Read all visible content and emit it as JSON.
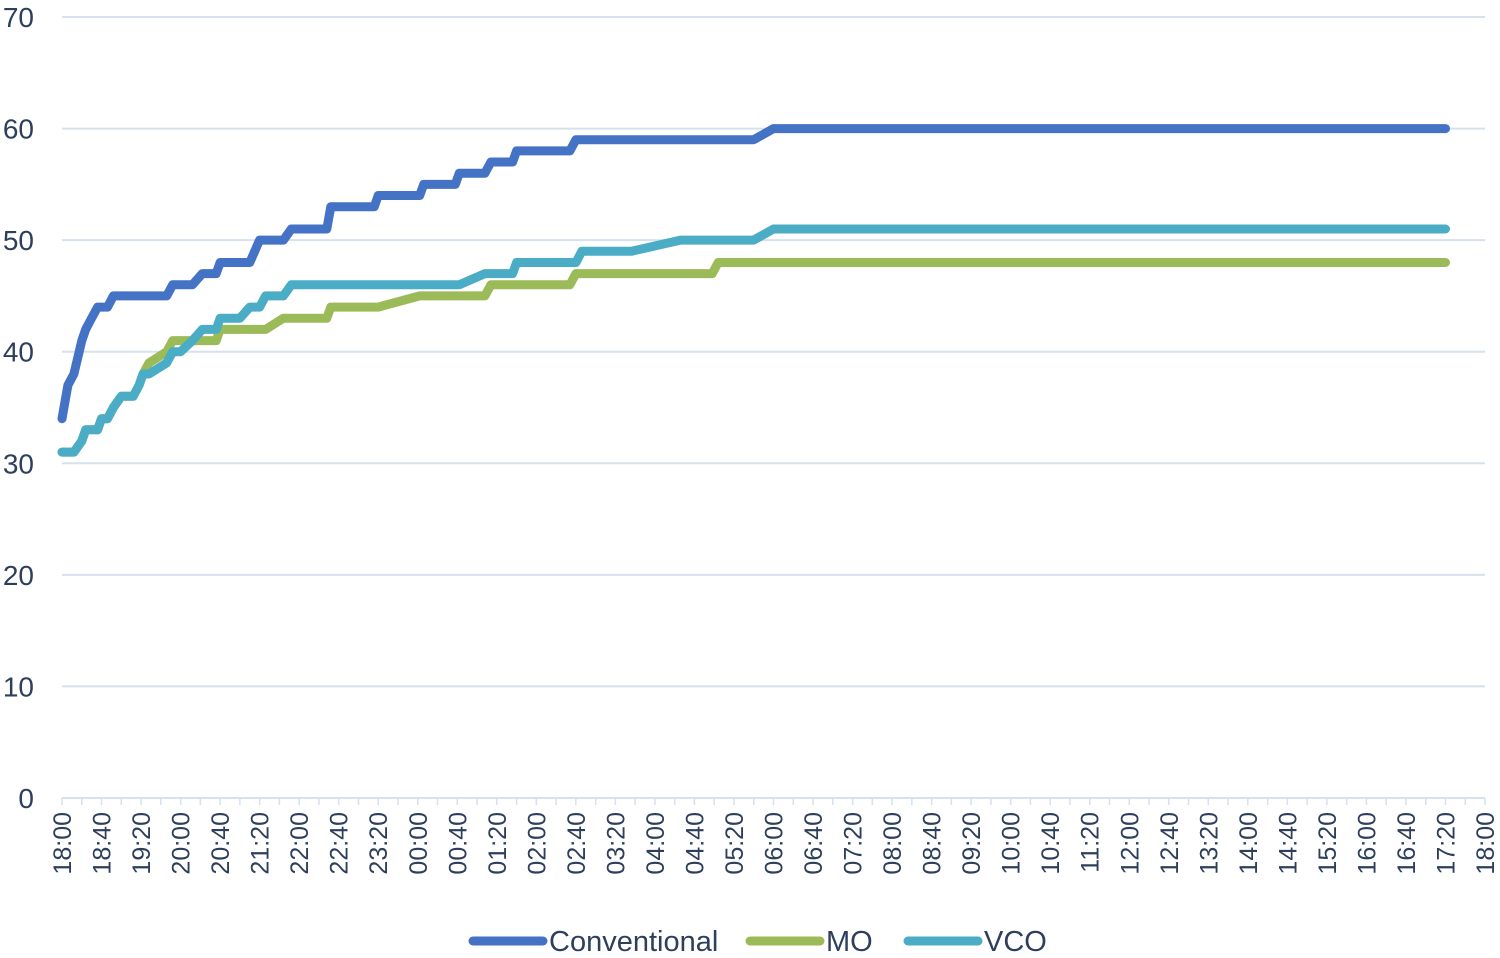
{
  "chart_data": {
    "type": "line",
    "ylim": [
      0,
      70
    ],
    "y_ticks": [
      "0",
      "10",
      "20",
      "30",
      "40",
      "50",
      "60",
      "70"
    ],
    "x_tick_labels": [
      "18:00",
      "18:40",
      "19:20",
      "20:00",
      "20:40",
      "21:20",
      "22:00",
      "22:40",
      "23:20",
      "00:00",
      "00:40",
      "01:20",
      "02:00",
      "02:40",
      "03:20",
      "04:00",
      "04:40",
      "05:20",
      "06:00",
      "06:40",
      "07:20",
      "08:00",
      "08:40",
      "09:20",
      "10:00",
      "10:40",
      "11:20",
      "12:00",
      "12:40",
      "13:20",
      "14:00",
      "14:40",
      "15:20",
      "16:00",
      "16:40",
      "17:20",
      "18:00"
    ],
    "x_unit_minutes": 20,
    "grid": true,
    "legend_position": "bottom",
    "series": [
      {
        "name": "Conventional",
        "color": "#4472c4",
        "x": [
          0,
          0.3,
          0.6,
          1,
          1.2,
          1.5,
          1.8,
          2,
          2.3,
          2.6,
          3,
          3.4,
          3.6,
          3.9,
          4.1,
          4.4,
          5.3,
          5.6,
          6,
          6.6,
          7.1,
          7.3,
          7.8,
          8,
          8.7,
          9,
          9.5,
          10,
          10.3,
          11.2,
          11.6,
          12.4,
          13.4,
          13.6,
          14.5,
          15.8,
          16,
          18.1,
          18.3,
          19.9,
          20.1,
          21.4,
          21.7,
          22.8,
          23,
          24.2,
          24.4,
          25.7,
          26,
          26.3,
          27.5,
          27.8,
          28.5,
          28.8,
          31.3,
          31.5,
          31.8,
          32.9,
          33.2,
          34.8,
          35,
          36,
          70
        ],
        "y": [
          34,
          37,
          38,
          41,
          42,
          43,
          44,
          44,
          44,
          45,
          45,
          45,
          45,
          45,
          45,
          45,
          45,
          46,
          46,
          46,
          47,
          47,
          47,
          48,
          48,
          48,
          48,
          50,
          50,
          50,
          51,
          51,
          51,
          53,
          53,
          53,
          54,
          54,
          55,
          55,
          56,
          56,
          57,
          57,
          58,
          58,
          58,
          58,
          59,
          59,
          59,
          59,
          59,
          59,
          59,
          59,
          59,
          59,
          59,
          59,
          59,
          60,
          60
        ]
      },
      {
        "name": "MO",
        "color": "#9bbb59",
        "x": [
          0,
          0.3,
          0.6,
          1,
          1.2,
          1.5,
          1.8,
          2,
          2.3,
          2.6,
          3,
          3.4,
          3.6,
          3.9,
          4.1,
          4.4,
          5.3,
          5.6,
          6,
          6.6,
          7.1,
          7.3,
          7.8,
          8,
          8.7,
          9,
          9.5,
          10,
          10.3,
          11.2,
          11.6,
          12.4,
          13.4,
          13.6,
          14.5,
          15.8,
          16,
          18.1,
          18.3,
          19.9,
          20.1,
          21.4,
          21.7,
          22.8,
          23,
          24.2,
          24.4,
          25.7,
          26,
          26.3,
          27.5,
          27.8,
          28.5,
          28.8,
          31.3,
          31.5,
          31.8,
          32.9,
          33.2,
          34.8,
          35,
          36,
          70
        ],
        "y": [
          31,
          31,
          31,
          32,
          33,
          33,
          33,
          34,
          34,
          35,
          36,
          36,
          36,
          37,
          38,
          39,
          40,
          41,
          41,
          41,
          41,
          41,
          41,
          42,
          42,
          42,
          42,
          42,
          42,
          43,
          43,
          43,
          43,
          44,
          44,
          44,
          44,
          45,
          45,
          45,
          45,
          45,
          46,
          46,
          46,
          46,
          46,
          46,
          47,
          47,
          47,
          47,
          47,
          47,
          47,
          47,
          47,
          47,
          48,
          48,
          48,
          48,
          48
        ]
      },
      {
        "name": "VCO",
        "color": "#4bacc6",
        "x": [
          0,
          0.3,
          0.6,
          1,
          1.2,
          1.5,
          1.8,
          2,
          2.3,
          2.6,
          3,
          3.4,
          3.6,
          3.9,
          4.1,
          4.4,
          5.3,
          5.6,
          6,
          6.6,
          7.1,
          7.3,
          7.8,
          8,
          8.7,
          9,
          9.5,
          10,
          10.3,
          11.2,
          11.6,
          12.4,
          13.4,
          13.6,
          14.5,
          15.8,
          16,
          18.1,
          18.3,
          19.9,
          20.1,
          21.4,
          21.7,
          22.8,
          23,
          24.2,
          24.4,
          25.7,
          26,
          26.3,
          27.5,
          27.8,
          28.5,
          28.8,
          31.3,
          31.5,
          31.8,
          32.9,
          33.2,
          34.8,
          35,
          36,
          70
        ],
        "y": [
          31,
          31,
          31,
          32,
          33,
          33,
          33,
          34,
          34,
          35,
          36,
          36,
          36,
          37,
          38,
          38,
          39,
          40,
          40,
          41,
          42,
          42,
          42,
          43,
          43,
          43,
          44,
          44,
          45,
          45,
          46,
          46,
          46,
          46,
          46,
          46,
          46,
          46,
          46,
          46,
          46,
          47,
          47,
          47,
          48,
          48,
          48,
          48,
          48,
          49,
          49,
          49,
          49,
          49,
          50,
          50,
          50,
          50,
          50,
          50,
          50,
          51,
          51
        ]
      }
    ]
  }
}
